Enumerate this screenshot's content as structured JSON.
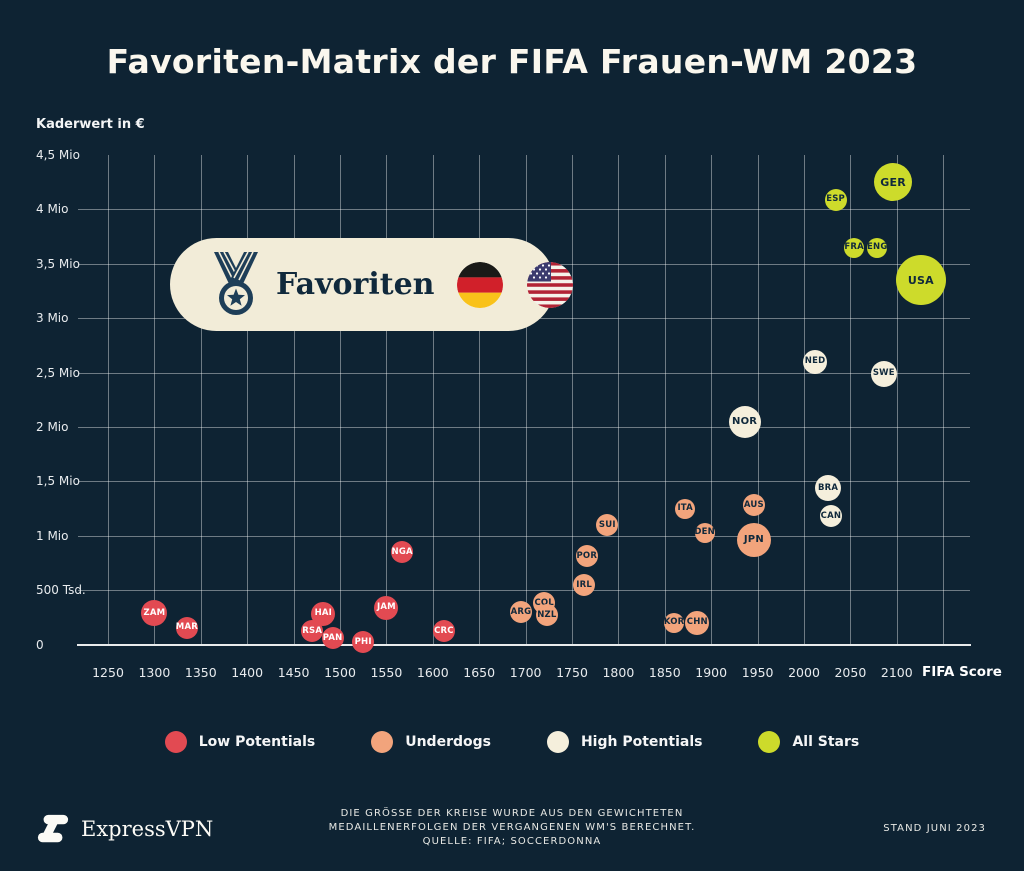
{
  "badge": {
    "label": "Favoriten",
    "flags": [
      "germany-flag",
      "usa-flag"
    ]
  },
  "footer": {
    "brand": "ExpressVPN",
    "note_lines": [
      "DIE GRÖSSE DER KREISE WURDE AUS DEN GEWICHTETEN",
      "MEDAILLENERFOLGEN DER VERGANGENEN WM'S BERECHNET.",
      "QUELLE: FIFA; SOCCERDONNA"
    ],
    "stand": "STAND JUNI 2023"
  },
  "chart_data": {
    "type": "scatter",
    "title": "Favoriten-Matrix der FIFA Frauen-WM 2023",
    "xlabel": "FIFA Score",
    "ylabel": "Kaderwert in €",
    "grid": true,
    "legend_position": "bottom",
    "xlim": [
      1215,
      2180
    ],
    "ylim": [
      0,
      4500000
    ],
    "x_ticks": [
      1250,
      1300,
      1350,
      1400,
      1450,
      1500,
      1550,
      1600,
      1650,
      1700,
      1750,
      1800,
      1850,
      1900,
      1950,
      2000,
      2050,
      2100
    ],
    "y_ticks": [
      {
        "value": 4500000,
        "label": "4,5 Mio"
      },
      {
        "value": 4000000,
        "label": "4 Mio"
      },
      {
        "value": 3500000,
        "label": "3,5 Mio"
      },
      {
        "value": 3000000,
        "label": "3 Mio"
      },
      {
        "value": 2500000,
        "label": "2,5 Mio"
      },
      {
        "value": 2000000,
        "label": "2 Mio"
      },
      {
        "value": 1500000,
        "label": "1,5 Mio"
      },
      {
        "value": 1000000,
        "label": "1 Mio"
      },
      {
        "value": 500000,
        "label": "500 Tsd."
      },
      {
        "value": 0,
        "label": "0"
      }
    ],
    "categories": {
      "low": {
        "label": "Low Potentials",
        "color": "#E24A52",
        "text_color": "#FFFFFF"
      },
      "underdog": {
        "label": "Underdogs",
        "color": "#F2A47C",
        "text_color": "#10293C"
      },
      "high": {
        "label": "High Potentials",
        "color": "#F5EFDC",
        "text_color": "#10293C"
      },
      "allstar": {
        "label": "All Stars",
        "color": "#CDDB2B",
        "text_color": "#10293C"
      }
    },
    "size_note": "bubble radius reflects weighted medal success of past World Cups",
    "teams": [
      {
        "code": "ZAM",
        "fifa_score": 1300,
        "value_eur": 290000,
        "category": "low",
        "r": 13
      },
      {
        "code": "MAR",
        "fifa_score": 1335,
        "value_eur": 155000,
        "category": "low",
        "r": 11
      },
      {
        "code": "HAI",
        "fifa_score": 1482,
        "value_eur": 285000,
        "category": "low",
        "r": 12
      },
      {
        "code": "RSA",
        "fifa_score": 1470,
        "value_eur": 120000,
        "category": "low",
        "r": 11
      },
      {
        "code": "PAN",
        "fifa_score": 1492,
        "value_eur": 60000,
        "category": "low",
        "r": 11
      },
      {
        "code": "PHI",
        "fifa_score": 1525,
        "value_eur": 25000,
        "category": "low",
        "r": 11
      },
      {
        "code": "JAM",
        "fifa_score": 1550,
        "value_eur": 340000,
        "category": "low",
        "r": 12
      },
      {
        "code": "NGA",
        "fifa_score": 1567,
        "value_eur": 850000,
        "category": "low",
        "r": 11
      },
      {
        "code": "CRC",
        "fifa_score": 1612,
        "value_eur": 120000,
        "category": "low",
        "r": 11
      },
      {
        "code": "ARG",
        "fifa_score": 1695,
        "value_eur": 295000,
        "category": "underdog",
        "r": 11
      },
      {
        "code": "COL",
        "fifa_score": 1720,
        "value_eur": 380000,
        "category": "underdog",
        "r": 11
      },
      {
        "code": "NZL",
        "fifa_score": 1723,
        "value_eur": 270000,
        "category": "underdog",
        "r": 11
      },
      {
        "code": "IRL",
        "fifa_score": 1763,
        "value_eur": 545000,
        "category": "underdog",
        "r": 11
      },
      {
        "code": "POR",
        "fifa_score": 1766,
        "value_eur": 810000,
        "category": "underdog",
        "r": 11
      },
      {
        "code": "SUI",
        "fifa_score": 1788,
        "value_eur": 1100000,
        "category": "underdog",
        "r": 11
      },
      {
        "code": "KOR",
        "fifa_score": 1860,
        "value_eur": 200000,
        "category": "underdog",
        "r": 10
      },
      {
        "code": "CHN",
        "fifa_score": 1885,
        "value_eur": 200000,
        "category": "underdog",
        "r": 12
      },
      {
        "code": "ITA",
        "fifa_score": 1872,
        "value_eur": 1250000,
        "category": "underdog",
        "r": 10
      },
      {
        "code": "DEN",
        "fifa_score": 1893,
        "value_eur": 1030000,
        "category": "underdog",
        "r": 10
      },
      {
        "code": "AUS",
        "fifa_score": 1946,
        "value_eur": 1280000,
        "category": "underdog",
        "r": 11
      },
      {
        "code": "JPN",
        "fifa_score": 1946,
        "value_eur": 965000,
        "category": "underdog",
        "r": 17
      },
      {
        "code": "NOR",
        "fifa_score": 1936,
        "value_eur": 2050000,
        "category": "high",
        "r": 16
      },
      {
        "code": "NED",
        "fifa_score": 2012,
        "value_eur": 2600000,
        "category": "high",
        "r": 12
      },
      {
        "code": "SWE",
        "fifa_score": 2086,
        "value_eur": 2490000,
        "category": "high",
        "r": 13
      },
      {
        "code": "BRA",
        "fifa_score": 2026,
        "value_eur": 1440000,
        "category": "high",
        "r": 13
      },
      {
        "code": "CAN",
        "fifa_score": 2029,
        "value_eur": 1180000,
        "category": "high",
        "r": 11
      },
      {
        "code": "ESP",
        "fifa_score": 2034,
        "value_eur": 4090000,
        "category": "allstar",
        "r": 11
      },
      {
        "code": "GER",
        "fifa_score": 2096,
        "value_eur": 4250000,
        "category": "allstar",
        "r": 19
      },
      {
        "code": "FRA",
        "fifa_score": 2054,
        "value_eur": 3650000,
        "category": "allstar",
        "r": 10
      },
      {
        "code": "ENG",
        "fifa_score": 2079,
        "value_eur": 3650000,
        "category": "allstar",
        "r": 10
      },
      {
        "code": "USA",
        "fifa_score": 2126,
        "value_eur": 3350000,
        "category": "allstar",
        "r": 25
      }
    ]
  }
}
